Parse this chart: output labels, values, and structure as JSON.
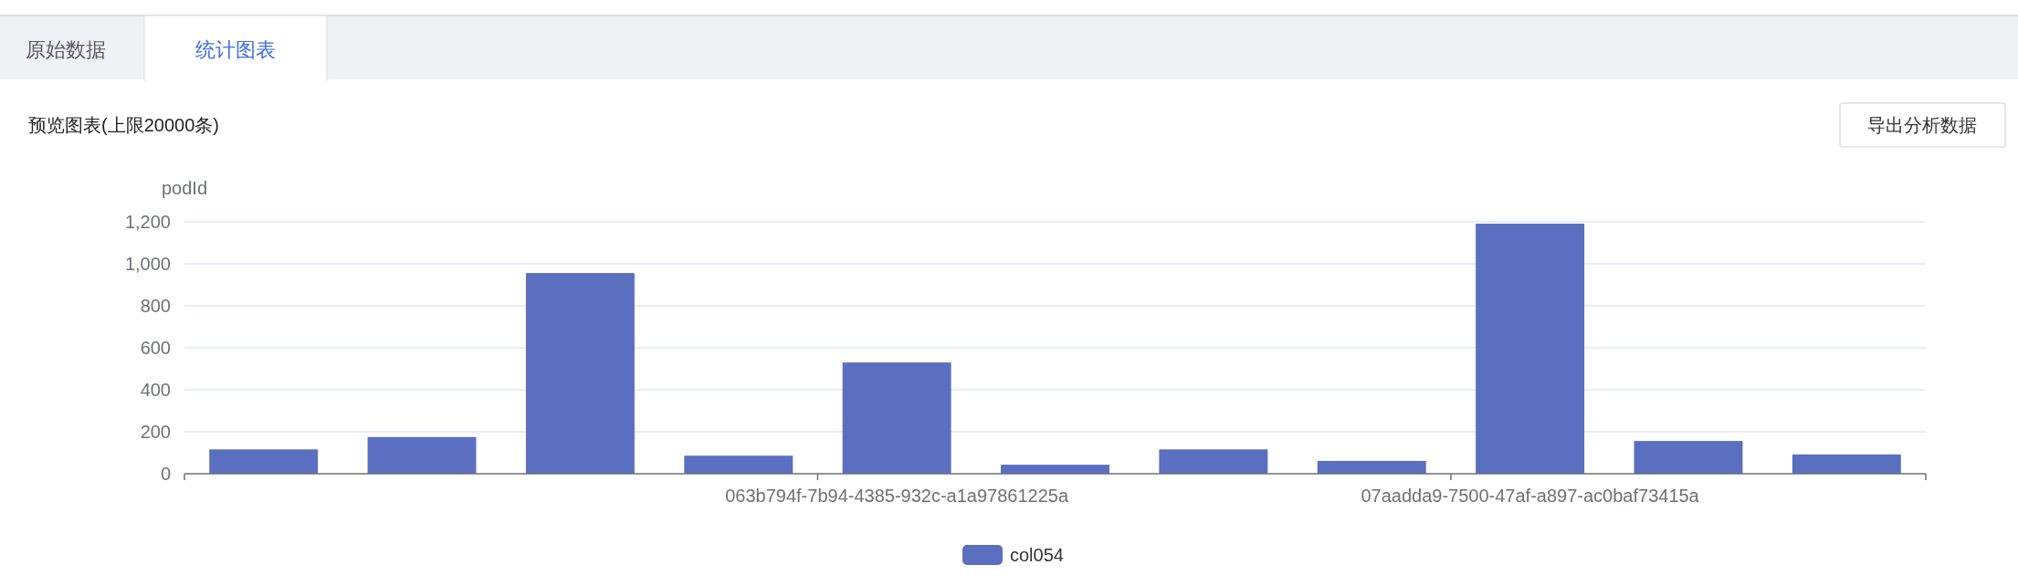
{
  "chart_data": {
    "type": "bar",
    "title": "预览图表(上限20000条)",
    "ylabel": "podId",
    "categories": [
      null,
      null,
      null,
      null,
      "063b794f-7b94-4385-932c-a1a97861225a",
      null,
      null,
      null,
      "07aadda9-7500-47af-a897-ac0baf73415a",
      null,
      null
    ],
    "series": [
      {
        "name": "col054",
        "color": "#5a6fc0",
        "values": [
          116,
          175,
          956,
          86,
          530,
          43,
          116,
          61,
          1191,
          156,
          92
        ]
      }
    ],
    "ylim": [
      0,
      1200
    ],
    "yticks": [
      0,
      200,
      400,
      600,
      800,
      {
        "value": 1000,
        "label": "1,000"
      },
      {
        "value": 1200,
        "label": "1,200"
      }
    ],
    "grid": "y",
    "legend": "bottom",
    "annotations": [
      "原始数据",
      "统计图表",
      "导出分析数据"
    ]
  }
}
